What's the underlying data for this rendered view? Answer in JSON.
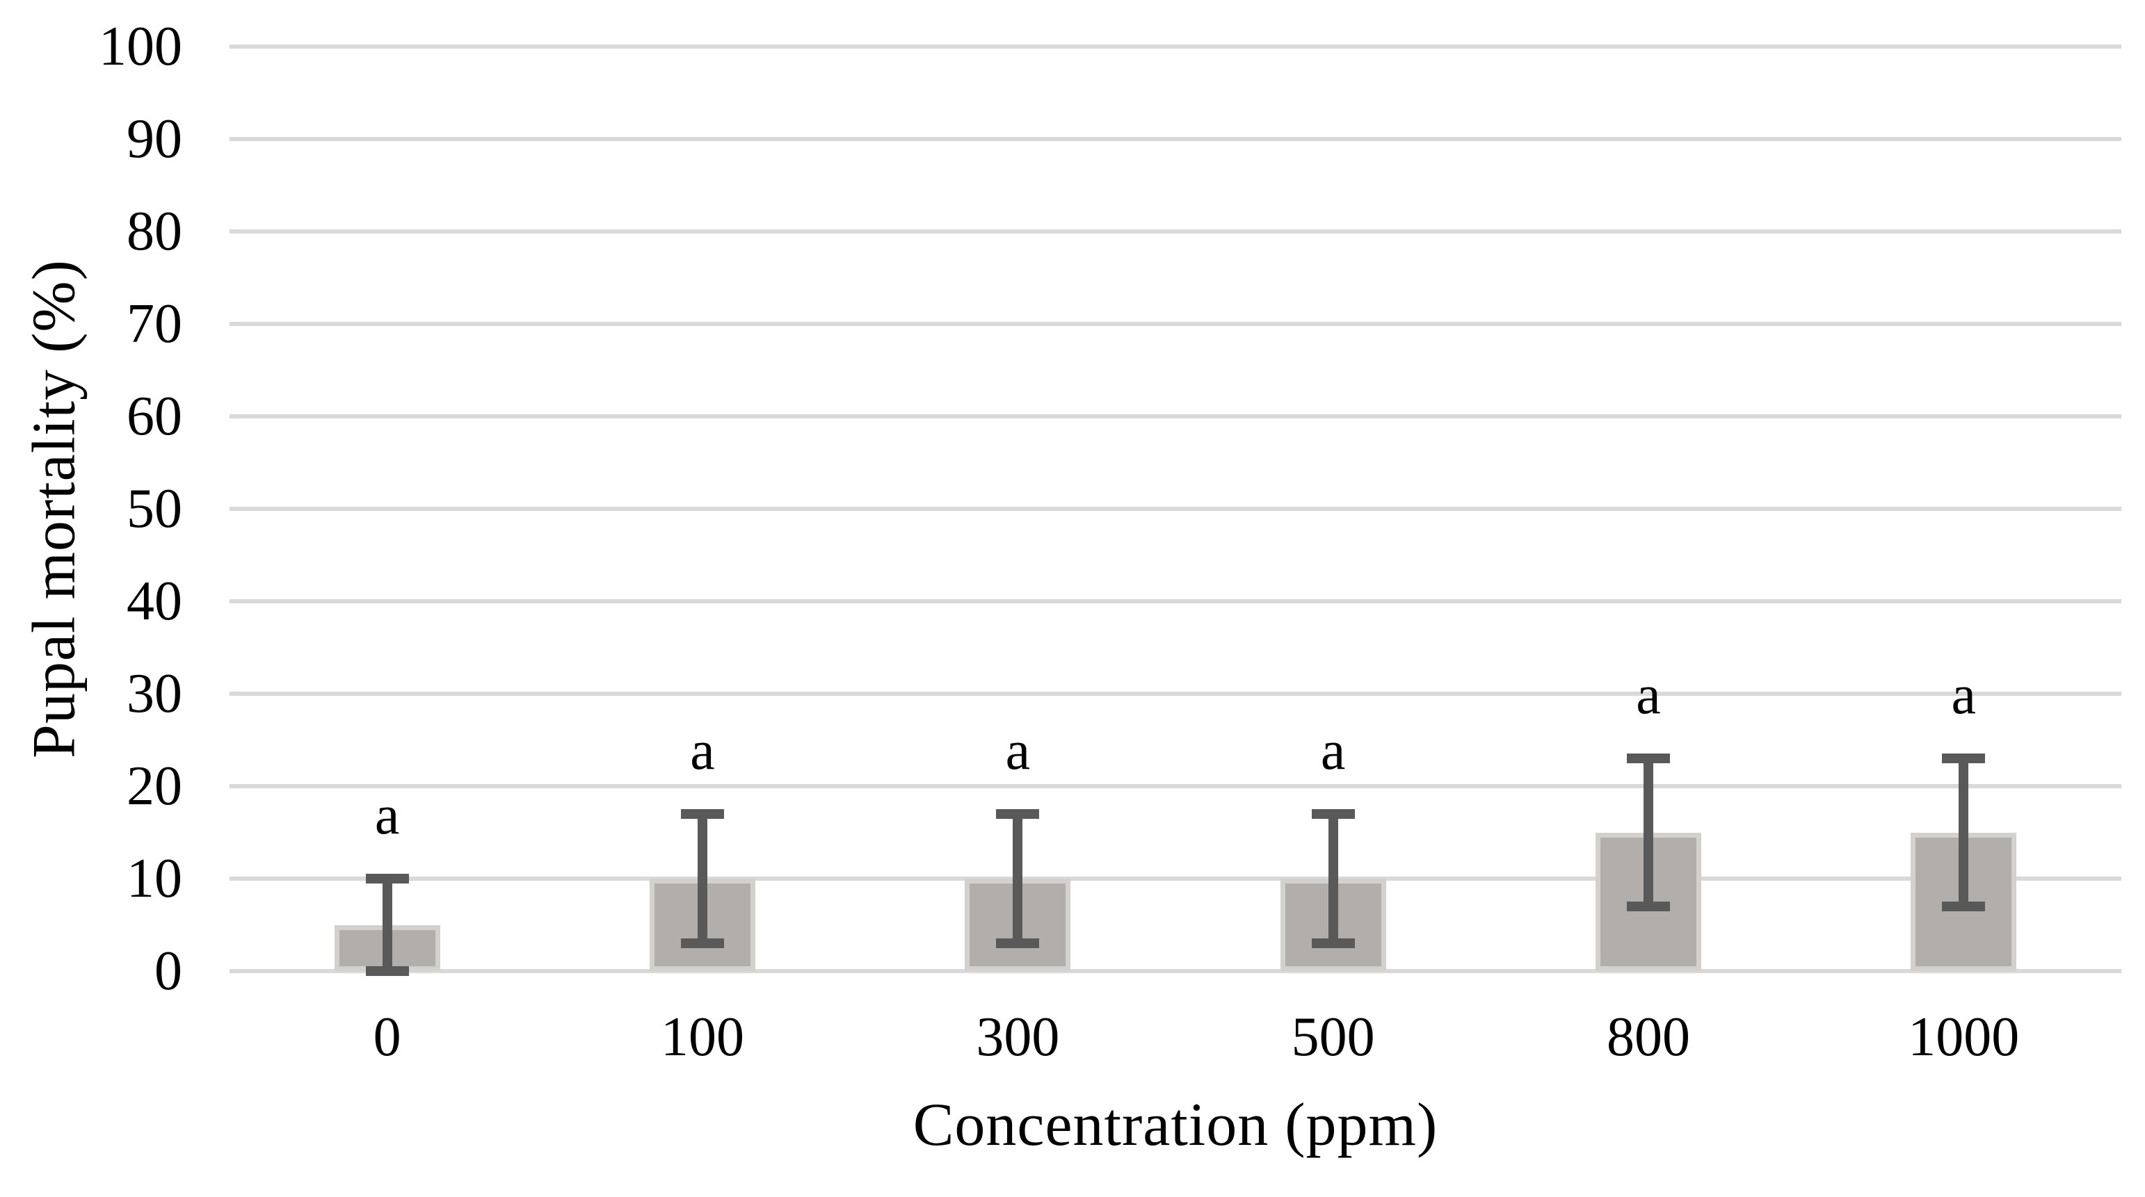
{
  "figure": {
    "background": "#ffffff"
  },
  "chart_data": {
    "type": "bar",
    "title": "",
    "xlabel": "Concentration (ppm)",
    "ylabel": "Pupal mortality (%)",
    "categories": [
      "0",
      "100",
      "300",
      "500",
      "800",
      "1000"
    ],
    "values": [
      5,
      10,
      10,
      10,
      15,
      15
    ],
    "error_low": [
      0,
      3,
      3,
      3,
      7,
      7
    ],
    "error_high": [
      10,
      17,
      17,
      17,
      23,
      23
    ],
    "bar_labels": [
      "a",
      "a",
      "a",
      "a",
      "a",
      "a"
    ],
    "ylim": [
      0,
      100
    ],
    "ytick_step": 10,
    "yticks": [
      0,
      10,
      20,
      30,
      40,
      50,
      60,
      70,
      80,
      90,
      100
    ],
    "grid": true,
    "legend": false,
    "colors": {
      "bar_fill": "#b1aeab",
      "bar_border": "#d3d1ce",
      "error_bar": "#595959",
      "gridline": "#d9d9d9",
      "text": "#000000"
    }
  }
}
